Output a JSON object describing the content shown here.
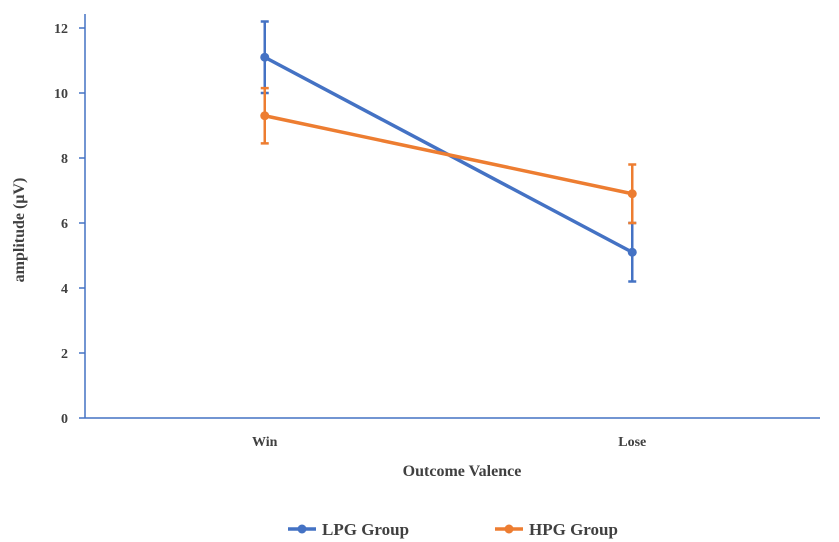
{
  "chart_data": {
    "type": "line",
    "title": "",
    "xlabel": "Outcome Valence",
    "ylabel": "amplitude (μV)",
    "categories": [
      "Win",
      "Lose"
    ],
    "ylim": [
      0,
      12
    ],
    "yticks": [
      "0",
      "2",
      "4",
      "6",
      "8",
      "10",
      "12"
    ],
    "grid": false,
    "legend_position": "bottom",
    "axis_color": "#4472C4",
    "series": [
      {
        "name": "LPG Group",
        "color": "#4472C4",
        "values": [
          11.1,
          5.1
        ],
        "error": [
          1.1,
          0.9
        ]
      },
      {
        "name": "HPG Group",
        "color": "#ED7D31",
        "values": [
          9.3,
          6.9
        ],
        "error": [
          0.85,
          0.9
        ]
      }
    ]
  }
}
